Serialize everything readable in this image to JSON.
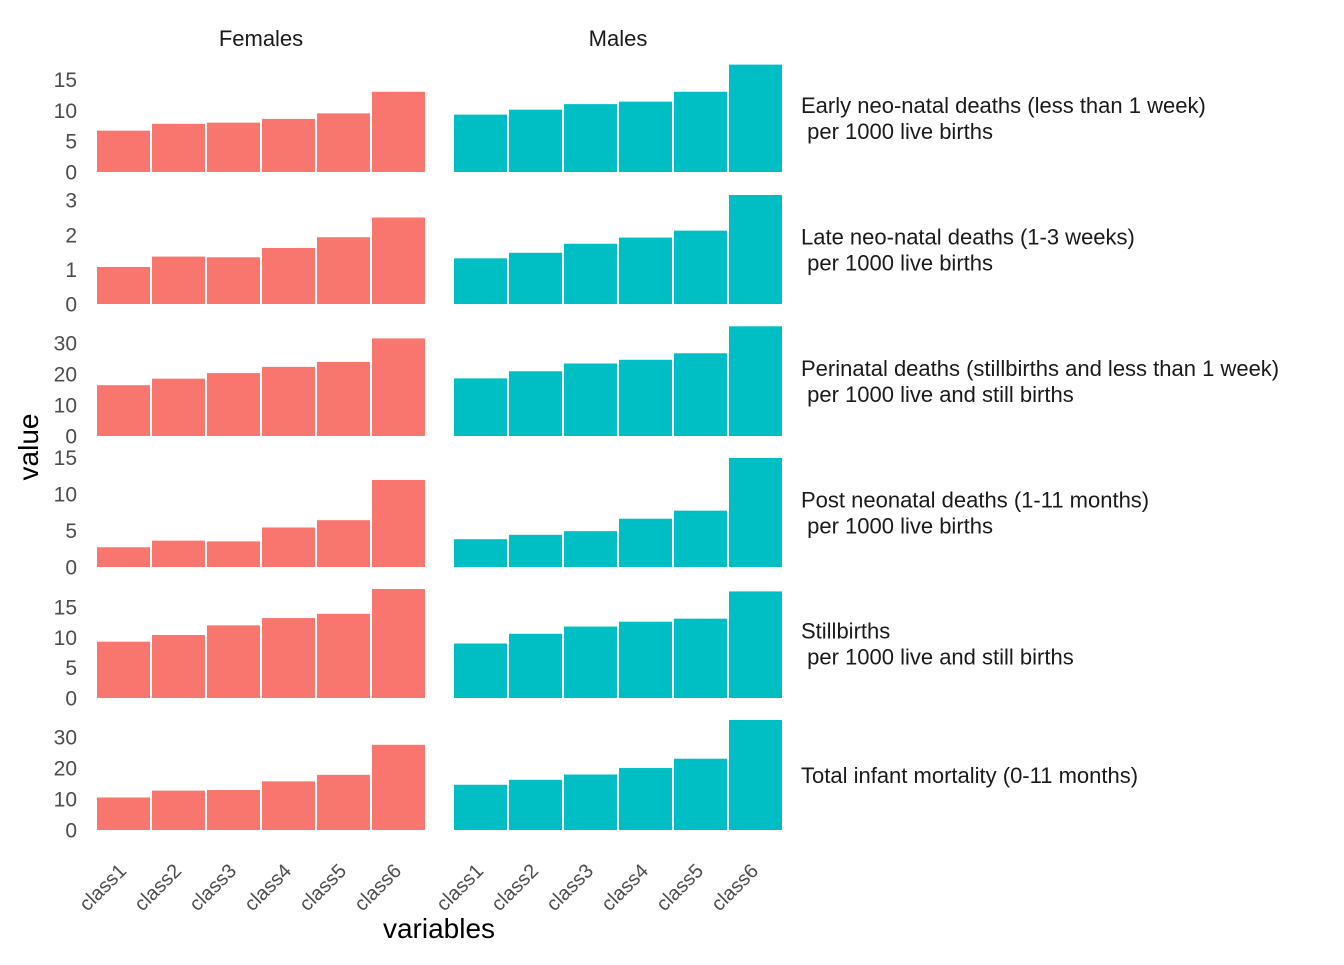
{
  "chart_data": {
    "type": "bar",
    "facet_columns": [
      "Females",
      "Males"
    ],
    "categories": [
      "class1",
      "class2",
      "class3",
      "class4",
      "class5",
      "class6"
    ],
    "xlabel": "variables",
    "ylabel": "value",
    "colors": {
      "Females": "#F8766D",
      "Males": "#00BFC4"
    },
    "grid": false,
    "scales": "free_y",
    "rows": [
      {
        "label_lines": [
          "Early neo-natal deaths (less than 1 week)",
          " per 1000 live births"
        ],
        "ylim": [
          0,
          17.5
        ],
        "yticks": [
          0,
          5,
          10,
          15
        ],
        "values": {
          "Females": [
            6.7,
            7.8,
            8.0,
            8.6,
            9.5,
            13.0
          ],
          "Males": [
            9.3,
            10.1,
            11.0,
            11.4,
            13.0,
            17.4
          ]
        }
      },
      {
        "label_lines": [
          "Late neo-natal deaths (1-3 weeks)",
          " per 1000 live births"
        ],
        "ylim": [
          0,
          3.15
        ],
        "yticks": [
          0,
          1,
          2,
          3
        ],
        "values": {
          "Females": [
            1.07,
            1.37,
            1.35,
            1.62,
            1.93,
            2.5
          ],
          "Males": [
            1.32,
            1.48,
            1.74,
            1.92,
            2.12,
            3.15
          ]
        }
      },
      {
        "label_lines": [
          "Perinatal deaths (stillbirths and less than 1 week)",
          " per 1000 live and still births"
        ],
        "ylim": [
          0,
          35.5
        ],
        "yticks": [
          0,
          10,
          20,
          30
        ],
        "values": {
          "Females": [
            16.4,
            18.5,
            20.3,
            22.3,
            23.9,
            31.5
          ],
          "Males": [
            18.6,
            20.9,
            23.4,
            24.6,
            26.7,
            35.4
          ]
        }
      },
      {
        "label_lines": [
          "Post neonatal deaths (1-11 months)",
          " per 1000 live births"
        ],
        "ylim": [
          0,
          14.9
        ],
        "yticks": [
          0,
          5,
          10,
          15
        ],
        "values": {
          "Females": [
            2.7,
            3.6,
            3.5,
            5.4,
            6.4,
            11.9
          ],
          "Males": [
            3.8,
            4.4,
            4.9,
            6.6,
            7.7,
            14.9
          ]
        }
      },
      {
        "label_lines": [
          "Stillbirths",
          " per 1000 live and still births"
        ],
        "ylim": [
          0,
          18.0
        ],
        "yticks": [
          0,
          5,
          10,
          15
        ],
        "values": {
          "Females": [
            9.3,
            10.4,
            12.0,
            13.2,
            13.9,
            18.0
          ],
          "Males": [
            9.0,
            10.6,
            11.8,
            12.6,
            13.1,
            17.6
          ]
        }
      },
      {
        "label_lines": [
          "Total infant mortality (0-11 months)"
        ],
        "ylim": [
          0,
          35.5
        ],
        "yticks": [
          0,
          10,
          20,
          30
        ],
        "values": {
          "Females": [
            10.5,
            12.7,
            12.9,
            15.7,
            17.8,
            27.5
          ],
          "Males": [
            14.6,
            16.2,
            17.9,
            20.0,
            23.0,
            35.5
          ]
        }
      }
    ]
  }
}
